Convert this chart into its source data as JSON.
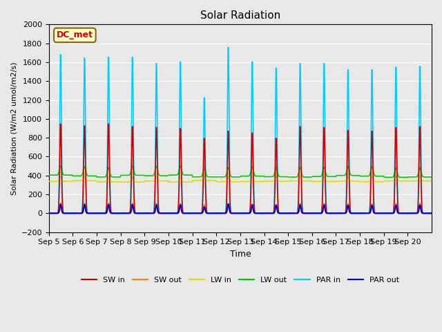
{
  "title": "Solar Radiation",
  "ylabel": "Solar Radiation (W/m2 umol/m2/s)",
  "xlabel": "Time",
  "ylim": [
    -200,
    2000
  ],
  "background_color": "#e8e8e8",
  "station_label": "DC_met",
  "x_ticks": [
    "Sep 5",
    "Sep 6",
    "Sep 7",
    "Sep 8",
    "Sep 9",
    "Sep 10",
    "Sep 11",
    "Sep 12",
    "Sep 13",
    "Sep 14",
    "Sep 15",
    "Sep 16",
    "Sep 17",
    "Sep 18",
    "Sep 19",
    "Sep 20"
  ],
  "yticks": [
    -200,
    0,
    200,
    400,
    600,
    800,
    1000,
    1200,
    1400,
    1600,
    1800,
    2000
  ],
  "series": {
    "SW_in": {
      "color": "#cc0000",
      "label": "SW in"
    },
    "SW_out": {
      "color": "#ff8800",
      "label": "SW out"
    },
    "LW_in": {
      "color": "#dddd00",
      "label": "LW in"
    },
    "LW_out": {
      "color": "#00cc00",
      "label": "LW out"
    },
    "PAR_in": {
      "color": "#00ccff",
      "label": "PAR in"
    },
    "PAR_out": {
      "color": "#0000cc",
      "label": "PAR out"
    }
  },
  "sw_in_peaks": [
    990,
    970,
    990,
    960,
    950,
    940,
    830,
    910,
    890,
    830,
    960,
    950,
    920,
    910,
    950,
    960
  ],
  "par_in_peaks": [
    1760,
    1720,
    1730,
    1730,
    1660,
    1680,
    1280,
    1840,
    1680,
    1610,
    1660,
    1660,
    1590,
    1590,
    1620,
    1630
  ],
  "sw_out_ratio": 0.115,
  "par_out_ratio": 0.055,
  "lw_in_base": 340,
  "lw_out_base": 390,
  "n_days": 16,
  "pts_per_day": 48,
  "bell_sigma": 0.035,
  "lw_sigma": 0.05,
  "day_start": 0.22,
  "day_end": 0.78
}
